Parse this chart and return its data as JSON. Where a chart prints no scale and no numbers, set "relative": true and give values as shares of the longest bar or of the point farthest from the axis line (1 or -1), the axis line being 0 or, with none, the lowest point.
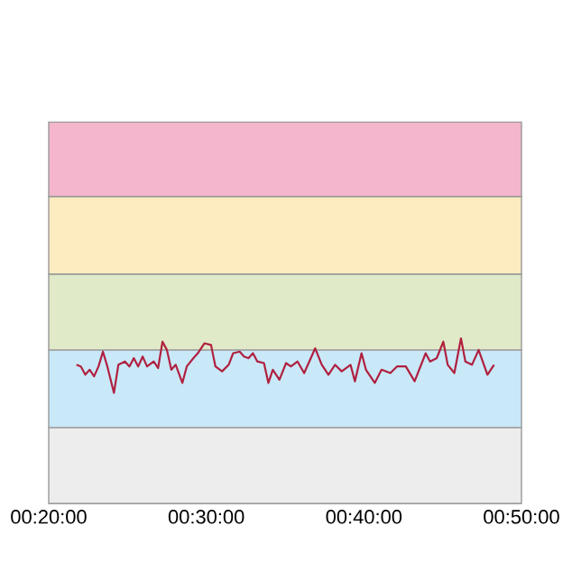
{
  "chart_data": {
    "type": "line",
    "relative": true,
    "color": "#b0203f",
    "x": [
      21.76,
      22.04,
      22.32,
      22.6,
      22.88,
      23.16,
      23.44,
      23.72,
      24.14,
      24.42,
      24.84,
      25.12,
      25.4,
      25.68,
      25.96,
      26.24,
      26.66,
      26.94,
      27.22,
      27.5,
      27.78,
      28.06,
      28.48,
      28.76,
      29.18,
      29.46,
      29.88,
      30.3,
      30.58,
      31.0,
      31.42,
      31.7,
      32.12,
      32.4,
      32.68,
      32.96,
      33.24,
      33.66,
      33.94,
      34.22,
      34.64,
      35.06,
      35.37,
      35.79,
      36.21,
      36.63,
      36.91,
      37.33,
      37.75,
      38.17,
      38.59,
      39.15,
      39.43,
      39.85,
      40.13,
      40.69,
      41.12,
      41.68,
      42.1,
      42.66,
      43.22,
      43.92,
      44.2,
      44.62,
      45.04,
      45.32,
      45.74,
      46.16,
      46.44,
      46.86,
      47.28,
      47.84,
      48.26
    ],
    "values": [
      0.84,
      0.83,
      0.78,
      0.81,
      0.77,
      0.83,
      0.92,
      0.83,
      0.67,
      0.84,
      0.86,
      0.83,
      0.88,
      0.83,
      0.89,
      0.83,
      0.86,
      0.82,
      0.98,
      0.93,
      0.81,
      0.84,
      0.73,
      0.83,
      0.88,
      0.91,
      0.97,
      0.96,
      0.83,
      0.8,
      0.84,
      0.91,
      0.92,
      0.89,
      0.88,
      0.91,
      0.86,
      0.85,
      0.73,
      0.81,
      0.75,
      0.85,
      0.83,
      0.86,
      0.79,
      0.88,
      0.94,
      0.84,
      0.78,
      0.84,
      0.8,
      0.84,
      0.74,
      0.91,
      0.81,
      0.73,
      0.81,
      0.79,
      0.83,
      0.83,
      0.74,
      0.91,
      0.86,
      0.88,
      0.98,
      0.84,
      0.79,
      1.0,
      0.86,
      0.84,
      0.93,
      0.78,
      0.84
    ],
    "xlim": [
      20,
      50
    ],
    "xticks": [
      {
        "value": 20,
        "label": "00:20:00"
      },
      {
        "value": 30,
        "label": "00:30:00"
      },
      {
        "value": 40,
        "label": "00:40:00"
      },
      {
        "value": 50,
        "label": "00:50:00"
      }
    ],
    "bands": [
      {
        "axis": "y",
        "from": 0,
        "to": 0.46,
        "color": "#ededed"
      },
      {
        "axis": "y",
        "from": 0.46,
        "to": 0.93,
        "color": "#c9e8f8"
      },
      {
        "axis": "y",
        "from": 0.93,
        "to": 1.39,
        "color": "#e0e9c8"
      },
      {
        "axis": "y",
        "from": 1.39,
        "to": 1.86,
        "color": "#fdecc0"
      },
      {
        "axis": "y",
        "from": 1.86,
        "to": 2.31,
        "color": "#f4b6cc"
      }
    ],
    "line_style": "solid"
  }
}
